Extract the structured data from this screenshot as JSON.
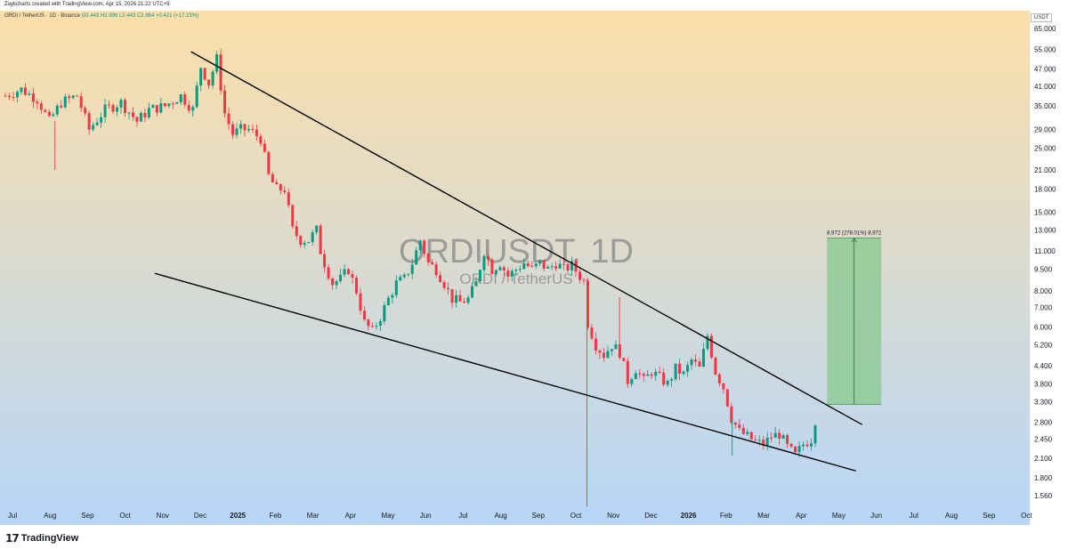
{
  "header": {
    "text": "Zaykcharts created with TradingView.com, Apr 15, 2026 21:22 UTC+5"
  },
  "info": {
    "symbol": "ORDI / TetherUS · 1D · Binance",
    "ohlc": "O2.443 H2.996 L2.443 C2.864 +0.421 (+17.23%)"
  },
  "unit_badge": "USDT",
  "watermark": {
    "title": "ORDIUSDT, 1D",
    "subtitle": "ORDI / TetherUS"
  },
  "measure_label": "8.972 (278.01%) 8,972",
  "footer": {
    "brand": "TradingView"
  },
  "colors": {
    "bg_top": "#fcdfa9",
    "bg_bottom": "#b7d6f8",
    "up": "#089981",
    "down": "#f23645",
    "trend": "#000000",
    "target_fill": "#8fca96"
  },
  "chart_data": {
    "type": "candlestick",
    "title": "ORDIUSDT, 1D",
    "y_scale": "log",
    "ylim": [
      1.4,
      68
    ],
    "y_ticks": [
      65.0,
      55.0,
      47.0,
      41.0,
      35.0,
      29.0,
      25.0,
      21.0,
      18.0,
      15.0,
      13.0,
      11.0,
      9.5,
      8.0,
      7.0,
      6.0,
      5.2,
      4.4,
      3.8,
      3.3,
      2.8,
      2.45,
      2.1,
      1.8,
      1.56
    ],
    "y_tick_labels": [
      "65.000",
      "55.000",
      "47.000",
      "41.000",
      "35.000",
      "29.000",
      "25.000",
      "21.000",
      "18.000",
      "15.000",
      "13.000",
      "11.000",
      "9.500",
      "8.000",
      "7.000",
      "6.000",
      "5.200",
      "4.400",
      "3.800",
      "3.300",
      "2.800",
      "2.450",
      "2.100",
      "1.800",
      "1.560"
    ],
    "x_tick_labels": [
      "Jul",
      "Aug",
      "Sep",
      "Oct",
      "Nov",
      "Dec",
      "2025",
      "Feb",
      "Mar",
      "Apr",
      "May",
      "Jun",
      "Jul",
      "Aug",
      "Sep",
      "Oct",
      "Nov",
      "Dec",
      "2026",
      "Feb",
      "Mar",
      "Apr",
      "May",
      "Jun",
      "Jul",
      "Aug",
      "Sep",
      "Oct"
    ],
    "x_tick_bold": [
      "2025",
      "2026"
    ],
    "price_path": [
      [
        0,
        38
      ],
      [
        4,
        40
      ],
      [
        8,
        37
      ],
      [
        11,
        31
      ],
      [
        14,
        36
      ],
      [
        18,
        38
      ],
      [
        21,
        29
      ],
      [
        25,
        34
      ],
      [
        29,
        36
      ],
      [
        33,
        31
      ],
      [
        36,
        34
      ],
      [
        40,
        35
      ],
      [
        44,
        38
      ],
      [
        47,
        34
      ],
      [
        49,
        48
      ],
      [
        51,
        42
      ],
      [
        53,
        51
      ],
      [
        55,
        33
      ],
      [
        57,
        28
      ],
      [
        59,
        29
      ],
      [
        61,
        29
      ],
      [
        64,
        27
      ],
      [
        66,
        20
      ],
      [
        68,
        18
      ],
      [
        70,
        18
      ],
      [
        72,
        13
      ],
      [
        74,
        12
      ],
      [
        76,
        12
      ],
      [
        78,
        13
      ],
      [
        79,
        11
      ],
      [
        80,
        10
      ],
      [
        82,
        8.5
      ],
      [
        84,
        8.8
      ],
      [
        86,
        9.5
      ],
      [
        88,
        8
      ],
      [
        90,
        6.2
      ],
      [
        92,
        5.8
      ],
      [
        94,
        6.5
      ],
      [
        96,
        7.5
      ],
      [
        98,
        8.5
      ],
      [
        100,
        8.8
      ],
      [
        102,
        10
      ],
      [
        104,
        12
      ],
      [
        106,
        10
      ],
      [
        108,
        9.5
      ],
      [
        110,
        8.5
      ],
      [
        112,
        7.5
      ],
      [
        114,
        7.3
      ],
      [
        116,
        7.5
      ],
      [
        118,
        8.5
      ],
      [
        120,
        11
      ],
      [
        122,
        9.5
      ],
      [
        124,
        10
      ],
      [
        126,
        9
      ],
      [
        128,
        9.5
      ],
      [
        130,
        10
      ],
      [
        132,
        9.5
      ],
      [
        134,
        10
      ],
      [
        136,
        9.5
      ],
      [
        138,
        10
      ],
      [
        140,
        9.5
      ],
      [
        142,
        9.8
      ],
      [
        144,
        9
      ],
      [
        145,
        8.6
      ],
      [
        146,
        6.2
      ],
      [
        148,
        5.2
      ],
      [
        150,
        4.8
      ],
      [
        152,
        5.2
      ],
      [
        154,
        4.9
      ],
      [
        156,
        3.9
      ],
      [
        158,
        4.3
      ],
      [
        160,
        3.9
      ],
      [
        162,
        4.2
      ],
      [
        164,
        4.0
      ],
      [
        166,
        3.8
      ],
      [
        168,
        4.3
      ],
      [
        170,
        4.1
      ],
      [
        172,
        4.6
      ],
      [
        174,
        4.3
      ],
      [
        176,
        5.6
      ],
      [
        178,
        4.2
      ],
      [
        180,
        3.7
      ],
      [
        182,
        2.9
      ],
      [
        184,
        2.6
      ],
      [
        186,
        2.5
      ],
      [
        188,
        2.4
      ],
      [
        190,
        2.35
      ],
      [
        192,
        2.5
      ],
      [
        194,
        2.55
      ],
      [
        196,
        2.3
      ],
      [
        198,
        2.15
      ],
      [
        200,
        2.35
      ],
      [
        202,
        2.45
      ],
      [
        203,
        2.86
      ]
    ],
    "candle_count": 204,
    "trendlines": [
      {
        "name": "upper-resistance",
        "from": {
          "date": "2024-11-24",
          "price": 54
        },
        "to": {
          "date": "2026-05-20",
          "price": 2.75
        }
      },
      {
        "name": "lower-support",
        "from": {
          "date": "2024-10-25",
          "price": 9.2
        },
        "to": {
          "date": "2026-05-15",
          "price": 1.9
        }
      }
    ],
    "price_range_tool": {
      "from_price": 3.23,
      "to_price": 12.2,
      "change": 8.972,
      "change_pct": 278.01,
      "start_date": "2026-04-22",
      "end_date": "2026-06-05"
    }
  }
}
